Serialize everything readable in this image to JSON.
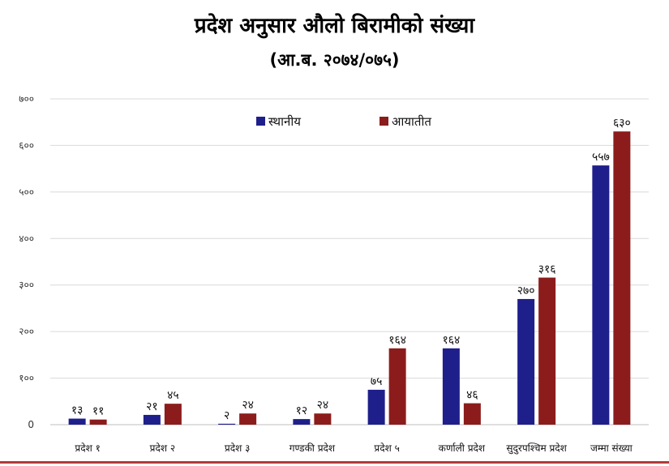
{
  "chart_data": {
    "type": "bar",
    "title": "प्रदेश अनुसार औलो बिरामीको संख्या",
    "subtitle": "(आ.ब. २०७४/०७५)",
    "categories": [
      "प्रदेश १",
      "प्रदेश २",
      "प्रदेश ३",
      "गण्डकी प्रदेश",
      "प्रदेश ५",
      "कर्णाली प्रदेश",
      "सुदुरपश्चिम प्रदेश",
      "जम्मा संख्या"
    ],
    "series": [
      {
        "name": "स्थानीय",
        "color": "#1f1f8c",
        "values": [
          13,
          21,
          2,
          12,
          75,
          164,
          270,
          557
        ],
        "labels": [
          "१३",
          "२१",
          "२",
          "१२",
          "७५",
          "१६४",
          "२७०",
          "५५७"
        ]
      },
      {
        "name": "आयातीत",
        "color": "#8c1c1c",
        "values": [
          11,
          45,
          24,
          24,
          164,
          46,
          316,
          630
        ],
        "labels": [
          "११",
          "४५",
          "२४",
          "२४",
          "१६४",
          "४६",
          "३१६",
          "६३०"
        ]
      }
    ],
    "ylim": [
      0,
      700
    ],
    "yticks": [
      0,
      100,
      200,
      300,
      400,
      500,
      600,
      700
    ],
    "ytick_labels": [
      "0",
      "१००",
      "२००",
      "३००",
      "४००",
      "५००",
      "६००",
      "७००"
    ],
    "grid": true,
    "legend": "top-center"
  }
}
